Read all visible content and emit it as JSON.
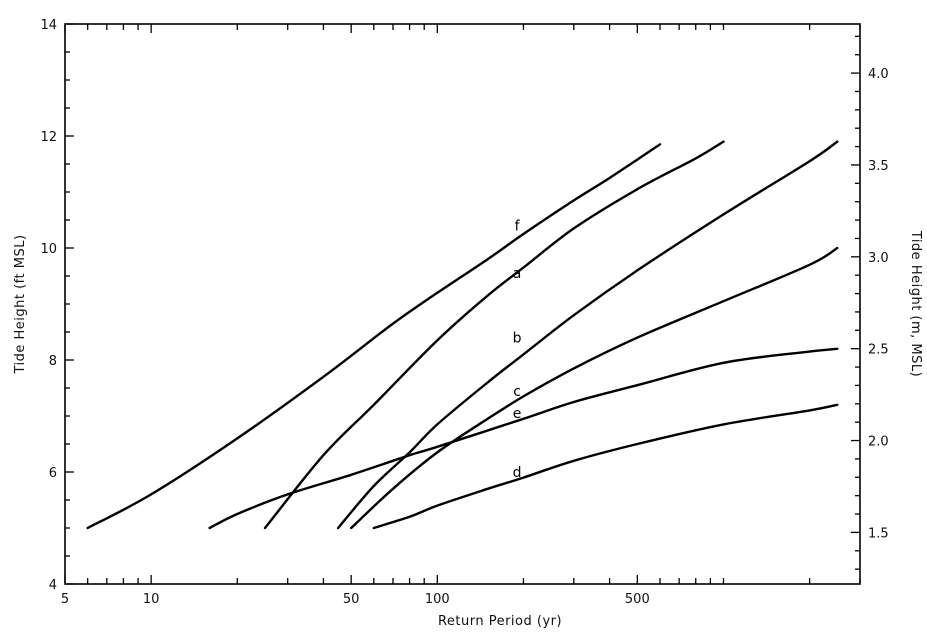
{
  "chart_data": {
    "type": "line",
    "xlabel": "Return Period (yr)",
    "ylabel": "Tide Height (ft MSL)",
    "ylabel_right": "Tide Height (m, MSL)",
    "x_scale": "log",
    "xlim": [
      5,
      3000
    ],
    "ylim": [
      4,
      14
    ],
    "x_ticks": [
      5,
      10,
      50,
      100,
      500
    ],
    "x_tick_labels": [
      "5",
      "10",
      "50",
      "100",
      "500"
    ],
    "y_ticks": [
      4,
      6,
      8,
      10,
      12,
      14
    ],
    "y_tick_labels": [
      "4",
      "6",
      "8",
      "10",
      "12",
      "14"
    ],
    "y2_ticks": [
      1.5,
      2.0,
      2.5,
      3.0,
      3.5,
      4.0
    ],
    "y2_tick_labels": [
      "1.5",
      "2.0",
      "2.5",
      "3.0",
      "3.5",
      "4.0"
    ],
    "grid": false,
    "series": [
      {
        "name": "f",
        "x": [
          6,
          10,
          20,
          40,
          70,
          100,
          150,
          200,
          300,
          400,
          600
        ],
        "y": [
          5.0,
          5.6,
          6.6,
          7.7,
          8.65,
          9.2,
          9.8,
          10.25,
          10.85,
          11.25,
          11.85
        ]
      },
      {
        "name": "a",
        "x": [
          25,
          40,
          60,
          100,
          150,
          200,
          300,
          500,
          800,
          1000
        ],
        "y": [
          5.0,
          6.3,
          7.2,
          8.35,
          9.15,
          9.65,
          10.35,
          11.05,
          11.6,
          11.9
        ]
      },
      {
        "name": "b",
        "x": [
          45,
          60,
          80,
          100,
          150,
          200,
          300,
          500,
          1000,
          2000,
          2500
        ],
        "y": [
          5.0,
          5.75,
          6.35,
          6.85,
          7.6,
          8.1,
          8.8,
          9.6,
          10.6,
          11.55,
          11.9
        ]
      },
      {
        "name": "c",
        "x": [
          50,
          70,
          100,
          150,
          200,
          300,
          500,
          1000,
          2000,
          2500
        ],
        "y": [
          5.0,
          5.7,
          6.35,
          6.95,
          7.35,
          7.85,
          8.4,
          9.05,
          9.7,
          10.0
        ]
      },
      {
        "name": "e",
        "x": [
          16,
          20,
          30,
          50,
          80,
          100,
          200,
          300,
          500,
          1000,
          2000,
          2500
        ],
        "y": [
          5.0,
          5.25,
          5.6,
          5.95,
          6.3,
          6.45,
          6.95,
          7.25,
          7.55,
          7.95,
          8.15,
          8.2
        ]
      },
      {
        "name": "d",
        "x": [
          60,
          80,
          100,
          150,
          200,
          300,
          500,
          1000,
          2000,
          2500
        ],
        "y": [
          5.0,
          5.2,
          5.4,
          5.7,
          5.9,
          6.2,
          6.5,
          6.85,
          7.1,
          7.2
        ]
      }
    ],
    "labels": [
      {
        "text": "f",
        "x": 190,
        "y": 10.4
      },
      {
        "text": "a",
        "x": 190,
        "y": 9.55
      },
      {
        "text": "b",
        "x": 190,
        "y": 8.4
      },
      {
        "text": "c",
        "x": 190,
        "y": 7.45
      },
      {
        "text": "e",
        "x": 190,
        "y": 7.05
      },
      {
        "text": "d",
        "x": 190,
        "y": 6.0
      }
    ]
  }
}
